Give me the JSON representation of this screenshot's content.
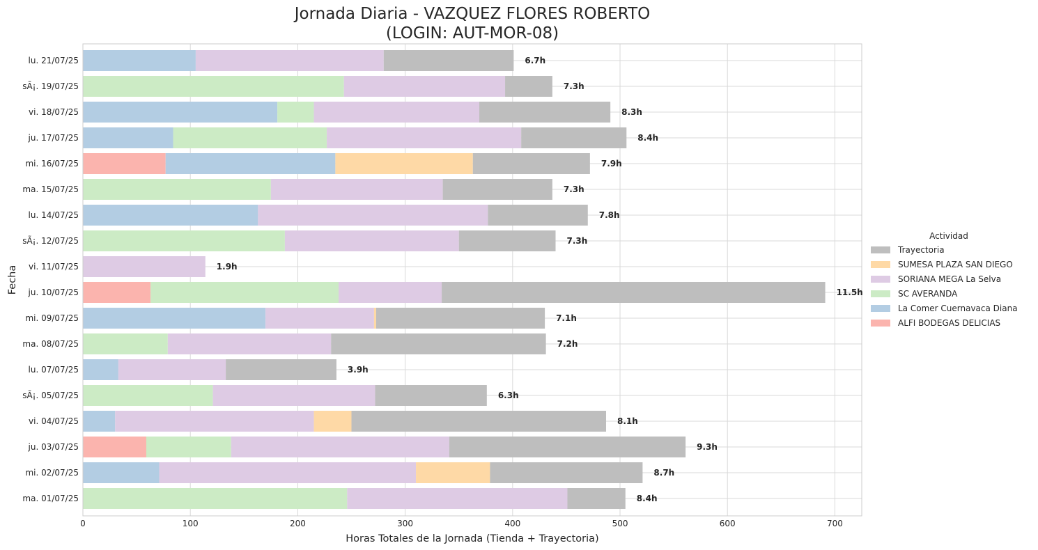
{
  "chart_data": {
    "type": "bar",
    "orientation": "horizontal",
    "stacked": true,
    "title_line1": "Jornada Diaria - VAZQUEZ FLORES ROBERTO",
    "title_line2": "(LOGIN: AUT-MOR-08)",
    "xlabel": "Horas Totales de la Jornada (Tienda + Trayectoria)",
    "ylabel": "Fecha",
    "xlim": [
      0,
      725
    ],
    "xticks": [
      0,
      100,
      200,
      300,
      400,
      500,
      600,
      700
    ],
    "grid": true,
    "legend_title": "Actividad",
    "legend_position": "center-right",
    "categories": [
      "lu. 21/07/25",
      "sÃ¡. 19/07/25",
      "vi. 18/07/25",
      "ju. 17/07/25",
      "mi. 16/07/25",
      "ma. 15/07/25",
      "lu. 14/07/25",
      "sÃ¡. 12/07/25",
      "vi. 11/07/25",
      "ju. 10/07/25",
      "mi. 09/07/25",
      "ma. 08/07/25",
      "lu. 07/07/25",
      "sÃ¡. 05/07/25",
      "vi. 04/07/25",
      "ju. 03/07/25",
      "mi. 02/07/25",
      "ma. 01/07/25"
    ],
    "series": [
      {
        "name": "ALFI BODEGAS DELICIAS",
        "color": "#fbb4ae",
        "values": [
          0,
          0,
          0,
          0,
          77,
          0,
          0,
          0,
          0,
          63,
          0,
          0,
          0,
          0,
          0,
          59,
          0,
          0
        ]
      },
      {
        "name": "La Comer Cuernavaca Diana",
        "color": "#b3cde3",
        "values": [
          105,
          0,
          181,
          84,
          158,
          0,
          163,
          0,
          0,
          0,
          170,
          0,
          33,
          0,
          30,
          0,
          71,
          0
        ]
      },
      {
        "name": "SC AVERANDA",
        "color": "#ccebc5",
        "values": [
          0,
          243,
          34,
          143,
          0,
          175,
          0,
          188,
          0,
          175,
          0,
          79,
          0,
          121,
          0,
          79,
          0,
          246
        ]
      },
      {
        "name": "SORIANA MEGA La Selva",
        "color": "#decbe4",
        "values": [
          175,
          150,
          154,
          181,
          0,
          160,
          214,
          162,
          114,
          96,
          101,
          152,
          100,
          151,
          185,
          203,
          239,
          205
        ]
      },
      {
        "name": "SUMESA PLAZA SAN DIEGO",
        "color": "#fed9a6",
        "values": [
          0,
          0,
          0,
          0,
          128,
          0,
          0,
          0,
          0,
          0,
          2,
          0,
          0,
          0,
          35,
          0,
          69,
          0
        ]
      },
      {
        "name": "Trayectoria",
        "color": "#bebebe",
        "values": [
          121,
          44,
          122,
          98,
          109,
          102,
          93,
          90,
          0,
          357,
          157,
          200,
          103,
          104,
          237,
          220,
          142,
          54
        ]
      }
    ],
    "totals_labels": [
      "6.7h",
      "7.3h",
      "8.3h",
      "8.4h",
      "7.9h",
      "7.3h",
      "7.8h",
      "7.3h",
      "1.9h",
      "11.5h",
      "7.1h",
      "7.2h",
      "3.9h",
      "6.3h",
      "8.1h",
      "9.3h",
      "8.7h",
      "8.4h"
    ],
    "legend_order": [
      "Trayectoria",
      "SUMESA PLAZA SAN DIEGO",
      "SORIANA MEGA La Selva",
      "SC AVERANDA",
      "La Comer Cuernavaca Diana",
      "ALFI BODEGAS DELICIAS"
    ]
  }
}
